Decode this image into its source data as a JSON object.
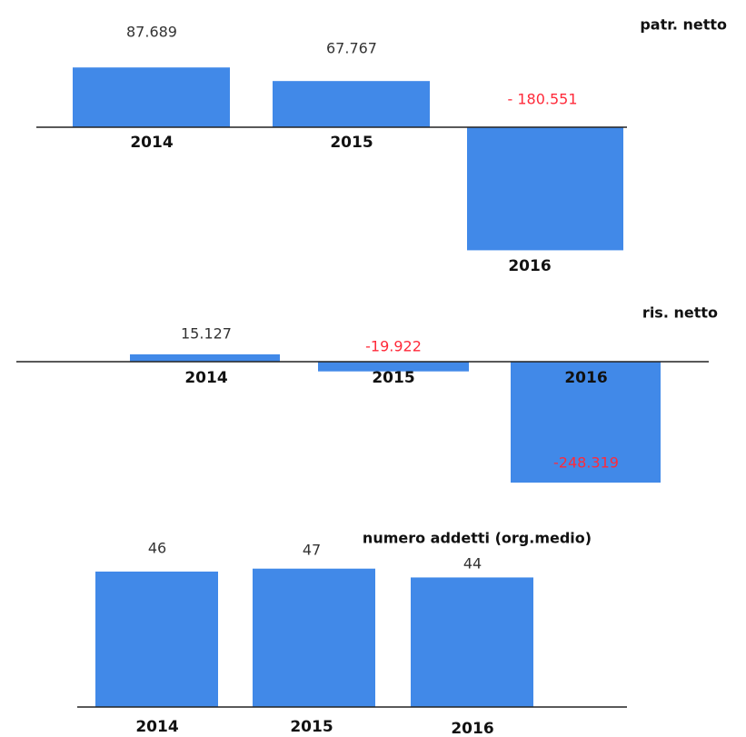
{
  "chart_data": [
    {
      "type": "bar",
      "title": "patr. netto",
      "categories": [
        "2014",
        "2015",
        "2016"
      ],
      "values": [
        87689,
        67767,
        -180551
      ],
      "value_labels": [
        "87.689",
        "67.767",
        "- 180.551"
      ],
      "color": "#4189e8",
      "negative_label_color": "#ff2a3a"
    },
    {
      "type": "bar",
      "title": "ris. netto",
      "categories": [
        "2014",
        "2015",
        "2016"
      ],
      "values": [
        15127,
        -19922,
        -248319
      ],
      "value_labels": [
        "15.127",
        "-19.922",
        "-248.319"
      ],
      "color": "#4189e8",
      "negative_label_color": "#ff2a3a"
    },
    {
      "type": "bar",
      "title": "numero addetti (org.medio)",
      "categories": [
        "2014",
        "2015",
        "2016"
      ],
      "values": [
        46,
        47,
        44
      ],
      "color": "#4189e8",
      "negative_label_color": "#ff2a3a"
    }
  ]
}
